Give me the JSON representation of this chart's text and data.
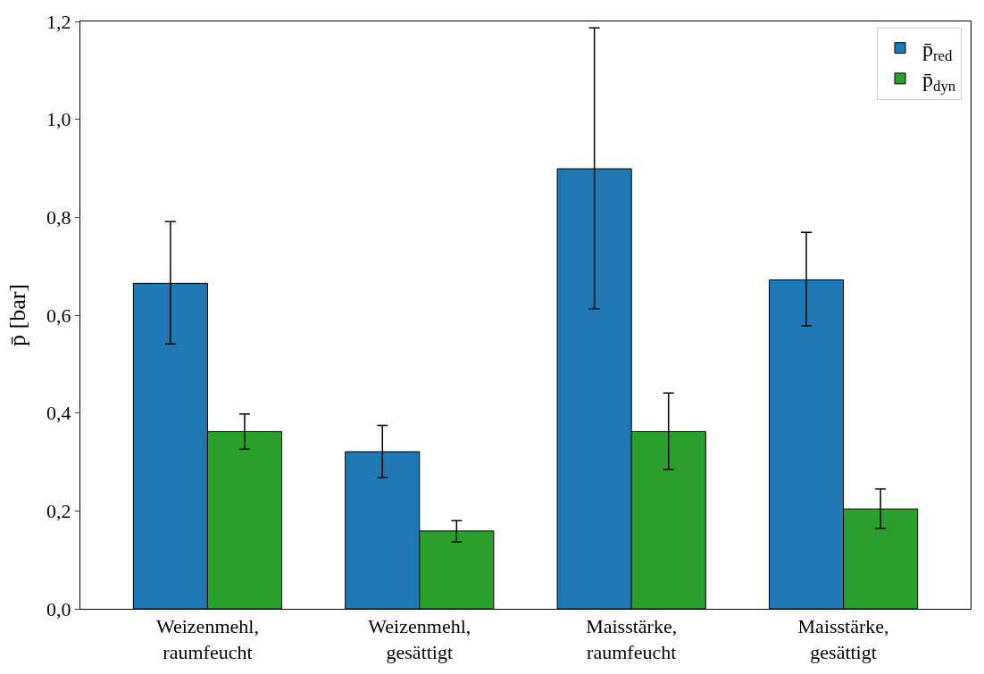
{
  "chart_data": {
    "type": "bar",
    "ylabel": "p̄ [bar]",
    "categories": [
      "Weizenmehl,\nraumfeucht",
      "Weizenmehl,\ngesättigt",
      "Maisstärke,\nraumfeucht",
      "Maisstärke,\ngesättigt"
    ],
    "series": [
      {
        "name": "p̄$_{red}$",
        "color": "#1f77b4",
        "values": [
          0.665,
          0.321,
          0.899,
          0.672
        ],
        "errors": [
          [
            0.541,
            0.791
          ],
          [
            0.268,
            0.375
          ],
          [
            0.613,
            1.187
          ],
          [
            0.578,
            0.769
          ]
        ]
      },
      {
        "name": "p̄$_{dyn}$",
        "color": "#2ca02c",
        "values": [
          0.362,
          0.159,
          0.362,
          0.204
        ],
        "errors": [
          [
            0.326,
            0.398
          ],
          [
            0.137,
            0.18
          ],
          [
            0.285,
            0.441
          ],
          [
            0.164,
            0.245
          ]
        ]
      }
    ],
    "ylim": [
      0,
      1.2
    ],
    "yticks": [
      {
        "value": 0,
        "label": "0,0"
      },
      {
        "value": 0.2,
        "label": "0,2"
      },
      {
        "value": 0.4,
        "label": "0,4"
      },
      {
        "value": 0.6,
        "label": "0,6"
      },
      {
        "value": 0.8,
        "label": "0,8"
      },
      {
        "value": 1.0,
        "label": "1,0"
      },
      {
        "value": 1.2,
        "label": "1,2"
      }
    ],
    "legend": "top right"
  }
}
